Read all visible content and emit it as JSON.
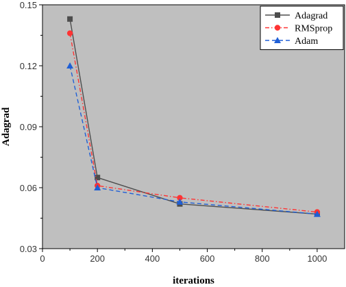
{
  "chart_data": {
    "type": "line",
    "title": "",
    "xlabel": "iterations",
    "ylabel": "Adagrad",
    "xlim": [
      0,
      1100
    ],
    "ylim": [
      0.03,
      0.15
    ],
    "xticks": [
      0,
      200,
      400,
      600,
      800,
      1000
    ],
    "yticks": [
      0.03,
      0.06,
      0.09,
      0.12,
      0.15
    ],
    "xtick_labels": [
      "0",
      "200",
      "400",
      "600",
      "800",
      "1000"
    ],
    "ytick_labels": [
      "0.03",
      "0.06",
      "0.09",
      "0.12",
      "0.15"
    ],
    "grid": false,
    "background": "#bfbfbf",
    "legend_position": "top-right",
    "x": [
      100,
      200,
      500,
      1000
    ],
    "series": [
      {
        "name": "Adagrad",
        "values": [
          0.143,
          0.065,
          0.052,
          0.047
        ],
        "color": "#4d4d4d",
        "marker": "square",
        "line_style": "solid"
      },
      {
        "name": "RMSprop",
        "values": [
          0.136,
          0.061,
          0.055,
          0.048
        ],
        "color": "#ff3333",
        "marker": "circle",
        "line_style": "dashdot"
      },
      {
        "name": "Adam",
        "values": [
          0.12,
          0.06,
          0.053,
          0.047
        ],
        "color": "#1f5fd6",
        "marker": "triangle",
        "line_style": "dashed"
      }
    ]
  }
}
